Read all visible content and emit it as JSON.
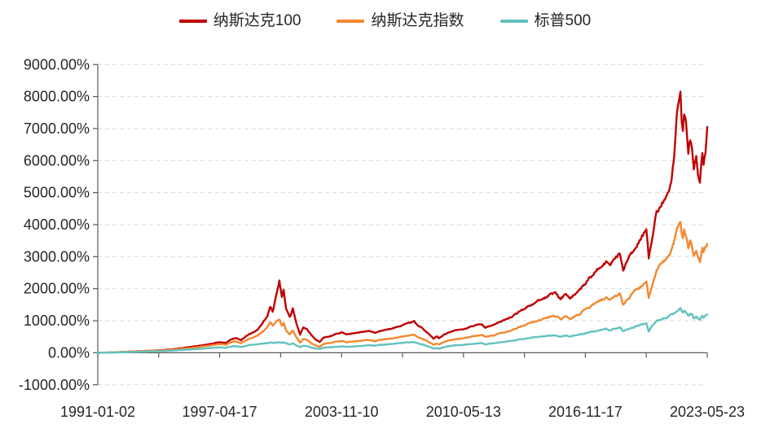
{
  "chart_data": {
    "type": "line",
    "title": "",
    "legend_position": "top-center",
    "grid": "horizontal-dashed",
    "x_axis": {
      "start_date": "1991-01-02",
      "end_date": "2023-05-23",
      "num_ticks": 11,
      "tick_labels": [
        "1991-01-02",
        "1997-04-17",
        "2003-11-10",
        "2010-05-13",
        "2016-11-17",
        "2023-05-23"
      ]
    },
    "y_axis": {
      "unit": "%",
      "ylim": [
        -1000,
        9000
      ],
      "tick_values": [
        9000,
        8000,
        7000,
        6000,
        5000,
        4000,
        3000,
        2000,
        1000,
        0,
        -1000
      ],
      "tick_labels": [
        "9000.00%",
        "8000.00%",
        "7000.00%",
        "6000.00%",
        "5000.00%",
        "4000.00%",
        "3000.00%",
        "2000.00%",
        "1000.00%",
        "0.00%",
        "-1000.00%"
      ]
    },
    "t": [
      0.0,
      0.02,
      0.04,
      0.062,
      0.09,
      0.11,
      0.123,
      0.14,
      0.154,
      0.17,
      0.185,
      0.2,
      0.21,
      0.216,
      0.225,
      0.235,
      0.247,
      0.255,
      0.262,
      0.27,
      0.278,
      0.283,
      0.287,
      0.293,
      0.298,
      0.302,
      0.305,
      0.309,
      0.315,
      0.32,
      0.326,
      0.332,
      0.337,
      0.343,
      0.35,
      0.357,
      0.364,
      0.371,
      0.38,
      0.39,
      0.401,
      0.408,
      0.42,
      0.432,
      0.445,
      0.455,
      0.463,
      0.48,
      0.494,
      0.505,
      0.519,
      0.525,
      0.531,
      0.54,
      0.551,
      0.556,
      0.56,
      0.568,
      0.574,
      0.585,
      0.599,
      0.61,
      0.62,
      0.63,
      0.636,
      0.641,
      0.65,
      0.658,
      0.665,
      0.679,
      0.69,
      0.7,
      0.71,
      0.72,
      0.73,
      0.741,
      0.75,
      0.759,
      0.768,
      0.775,
      0.78,
      0.79,
      0.803,
      0.815,
      0.825,
      0.834,
      0.84,
      0.848,
      0.857,
      0.862,
      0.868,
      0.875,
      0.883,
      0.89,
      0.9,
      0.904,
      0.91,
      0.917,
      0.923,
      0.929,
      0.935,
      0.941,
      0.946,
      0.95,
      0.953,
      0.956,
      0.958,
      0.96,
      0.962,
      0.965,
      0.969,
      0.972,
      0.975,
      0.978,
      0.982,
      0.985,
      0.988,
      0.99,
      0.992,
      0.994,
      0.997,
      1.0
    ],
    "series": [
      {
        "name": "纳斯达克100",
        "color": "#C00000",
        "values": [
          0,
          8,
          22,
          45,
          65,
          90,
          110,
          150,
          185,
          230,
          275,
          330,
          300,
          390,
          460,
          395,
          560,
          640,
          720,
          900,
          1150,
          1450,
          1270,
          1850,
          2240,
          1750,
          1950,
          1350,
          1100,
          1380,
          900,
          560,
          800,
          750,
          560,
          420,
          340,
          480,
          500,
          580,
          640,
          570,
          610,
          650,
          680,
          620,
          680,
          740,
          820,
          900,
          970,
          850,
          780,
          640,
          440,
          500,
          450,
          560,
          620,
          690,
          730,
          800,
          850,
          890,
          780,
          820,
          860,
          950,
          1000,
          1120,
          1260,
          1370,
          1500,
          1600,
          1680,
          1800,
          1850,
          1700,
          1820,
          1680,
          1800,
          1950,
          2250,
          2500,
          2700,
          2850,
          2700,
          2950,
          3100,
          2550,
          2800,
          3050,
          3300,
          3500,
          3900,
          2950,
          3600,
          4350,
          4600,
          4750,
          5000,
          5400,
          6200,
          7300,
          7800,
          8200,
          7300,
          7000,
          7600,
          7300,
          6300,
          6700,
          6400,
          5800,
          6100,
          5500,
          5300,
          5800,
          6200,
          5900,
          6300,
          7050
        ]
      },
      {
        "name": "纳斯达克指数",
        "color": "#F2882D",
        "values": [
          0,
          10,
          25,
          45,
          60,
          80,
          95,
          125,
          150,
          190,
          230,
          270,
          250,
          310,
          360,
          300,
          430,
          480,
          540,
          650,
          800,
          950,
          850,
          1000,
          1050,
          850,
          950,
          700,
          580,
          700,
          480,
          310,
          420,
          400,
          300,
          230,
          190,
          280,
          300,
          340,
          370,
          330,
          350,
          380,
          400,
          360,
          400,
          440,
          490,
          530,
          560,
          490,
          450,
          370,
          250,
          290,
          260,
          330,
          370,
          420,
          450,
          500,
          530,
          560,
          490,
          520,
          545,
          600,
          630,
          700,
          790,
          860,
          940,
          1000,
          1040,
          1120,
          1150,
          1060,
          1130,
          1040,
          1110,
          1200,
          1380,
          1520,
          1630,
          1700,
          1620,
          1750,
          1850,
          1500,
          1650,
          1800,
          1950,
          2050,
          2250,
          1700,
          2100,
          2550,
          2750,
          2850,
          3000,
          3200,
          3500,
          3800,
          3950,
          4100,
          3700,
          3600,
          3850,
          3700,
          3300,
          3500,
          3350,
          3050,
          3200,
          2950,
          2850,
          3050,
          3250,
          3100,
          3250,
          3400
        ]
      },
      {
        "name": "标普500",
        "color": "#62C2BE",
        "values": [
          0,
          6,
          15,
          28,
          42,
          58,
          70,
          88,
          105,
          125,
          150,
          165,
          155,
          185,
          210,
          180,
          235,
          250,
          265,
          285,
          300,
          320,
          305,
          325,
          330,
          310,
          325,
          290,
          260,
          290,
          230,
          180,
          215,
          205,
          165,
          135,
          125,
          160,
          170,
          185,
          200,
          185,
          195,
          215,
          235,
          220,
          245,
          270,
          300,
          320,
          330,
          290,
          265,
          215,
          130,
          150,
          125,
          175,
          200,
          230,
          245,
          270,
          285,
          300,
          265,
          280,
          295,
          320,
          335,
          370,
          410,
          435,
          465,
          490,
          505,
          530,
          540,
          505,
          535,
          500,
          530,
          565,
          620,
          670,
          710,
          740,
          700,
          750,
          790,
          670,
          720,
          770,
          820,
          860,
          920,
          660,
          850,
          990,
          1030,
          1070,
          1120,
          1180,
          1250,
          1300,
          1340,
          1380,
          1290,
          1260,
          1320,
          1280,
          1160,
          1220,
          1180,
          1080,
          1130,
          1060,
          1030,
          1100,
          1160,
          1110,
          1150,
          1190
        ]
      }
    ],
    "colors": {
      "axis": "#595959",
      "gridline": "#D9D9D9",
      "text": "#262626"
    }
  }
}
